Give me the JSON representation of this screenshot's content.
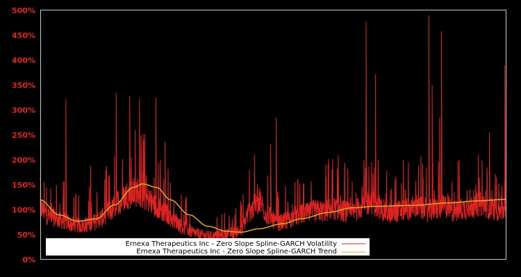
{
  "chart_data": {
    "type": "line",
    "title": "",
    "xlabel": "",
    "ylabel": "",
    "ylim": [
      0,
      500
    ],
    "yticks": [
      0,
      50,
      100,
      150,
      200,
      250,
      300,
      350,
      400,
      450,
      500
    ],
    "ytick_labels": [
      "0%",
      "50%",
      "100%",
      "150%",
      "200%",
      "250%",
      "300%",
      "350%",
      "400%",
      "450%",
      "500%"
    ],
    "x_ticks_visible": false,
    "grid": false,
    "legend_position": "lower center",
    "series": [
      {
        "name": "Ernexa Therapeutics Inc - Zero Slope Spline-GARCH Volatility",
        "color": "#dd2222",
        "style": "noisy-line",
        "x_norm": [
          0.0,
          0.02,
          0.05,
          0.07,
          0.09,
          0.11,
          0.13,
          0.15,
          0.17,
          0.19,
          0.21,
          0.23,
          0.25,
          0.27,
          0.29,
          0.31,
          0.33,
          0.35,
          0.37,
          0.39,
          0.41,
          0.43,
          0.45,
          0.47,
          0.49,
          0.51,
          0.53,
          0.55,
          0.57,
          0.59,
          0.61,
          0.63,
          0.65,
          0.67,
          0.69,
          0.71,
          0.73,
          0.75,
          0.77,
          0.79,
          0.81,
          0.83,
          0.85,
          0.87,
          0.89,
          0.91,
          0.93,
          0.95,
          0.97,
          1.0
        ],
        "base_values": [
          105,
          90,
          80,
          72,
          70,
          75,
          85,
          100,
          120,
          135,
          140,
          125,
          110,
          95,
          80,
          65,
          55,
          50,
          48,
          50,
          55,
          60,
          100,
          120,
          90,
          75,
          80,
          90,
          95,
          100,
          100,
          105,
          100,
          95,
          110,
          120,
          105,
          95,
          100,
          105,
          110,
          100,
          105,
          110,
          100,
          105,
          110,
          115,
          105,
          100
        ],
        "spikes": [
          {
            "x_norm": 0.055,
            "value": 323
          },
          {
            "x_norm": 0.108,
            "value": 188
          },
          {
            "x_norm": 0.163,
            "value": 335
          },
          {
            "x_norm": 0.192,
            "value": 328
          },
          {
            "x_norm": 0.213,
            "value": 322
          },
          {
            "x_norm": 0.248,
            "value": 325
          },
          {
            "x_norm": 0.268,
            "value": 237
          },
          {
            "x_norm": 0.495,
            "value": 232
          },
          {
            "x_norm": 0.507,
            "value": 285
          },
          {
            "x_norm": 0.64,
            "value": 210
          },
          {
            "x_norm": 0.7,
            "value": 478
          },
          {
            "x_norm": 0.72,
            "value": 372
          },
          {
            "x_norm": 0.78,
            "value": 200
          },
          {
            "x_norm": 0.835,
            "value": 490
          },
          {
            "x_norm": 0.842,
            "value": 350
          },
          {
            "x_norm": 0.858,
            "value": 285
          },
          {
            "x_norm": 0.862,
            "value": 458
          },
          {
            "x_norm": 0.9,
            "value": 200
          },
          {
            "x_norm": 0.965,
            "value": 255
          },
          {
            "x_norm": 0.998,
            "value": 390
          }
        ]
      },
      {
        "name": "Ernexa Therapeutics Inc - Zero Slope Spline-GARCH Trend",
        "color": "#d4a52a",
        "style": "smooth-line",
        "x_norm": [
          0.0,
          0.04,
          0.08,
          0.12,
          0.16,
          0.2,
          0.22,
          0.25,
          0.28,
          0.32,
          0.36,
          0.4,
          0.43,
          0.47,
          0.52,
          0.56,
          0.62,
          0.67,
          0.72,
          0.8,
          0.88,
          0.94,
          1.0
        ],
        "values": [
          120,
          90,
          77,
          82,
          110,
          145,
          152,
          145,
          120,
          90,
          67,
          57,
          55,
          62,
          72,
          82,
          95,
          104,
          107,
          109,
          114,
          118,
          121
        ]
      }
    ]
  },
  "legend": {
    "items": [
      {
        "label": "Ernexa Therapeutics Inc - Zero Slope Spline-GARCH Volatility",
        "color": "#dd2222"
      },
      {
        "label": "Ernexa Therapeutics Inc - Zero Slope Spline-GARCH Trend",
        "color": "#d4a52a"
      }
    ]
  },
  "colors": {
    "background": "#000000",
    "axis_frame": "#cccccc",
    "tick_label": "#dd2222",
    "legend_bg": "#ffffff"
  }
}
